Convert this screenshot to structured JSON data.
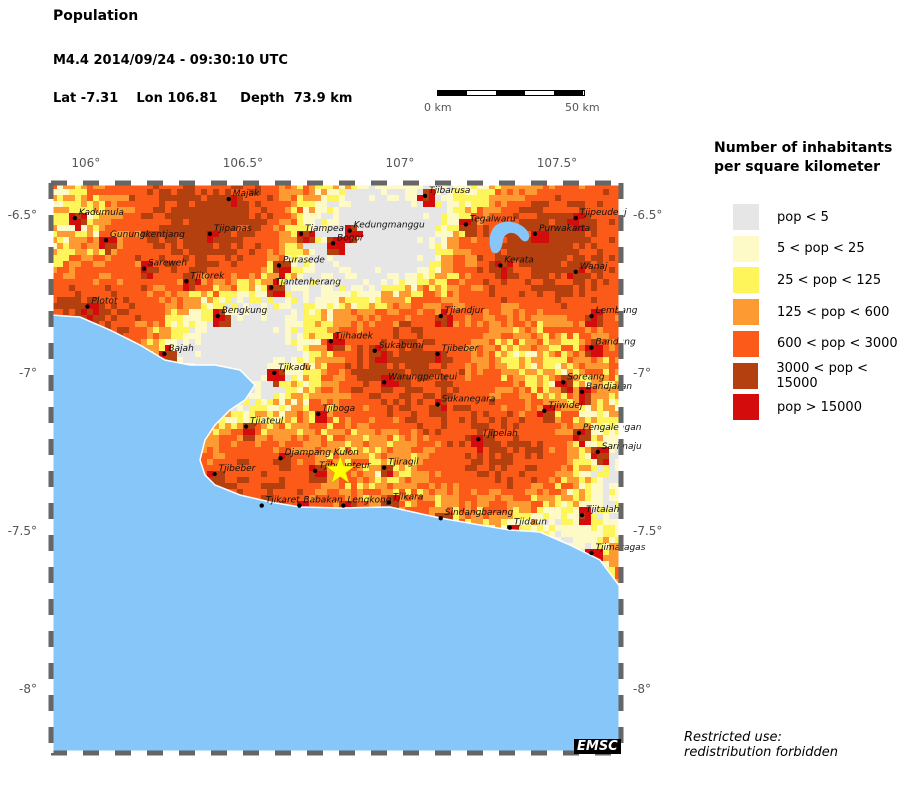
{
  "header": {
    "title": "Population",
    "event": "M4.4  2014/09/24 - 09:30:10 UTC",
    "location": "Lat -7.31    Lon 106.81     Depth  73.9 km"
  },
  "scale_bar": {
    "start_label": "0 km",
    "end_label": "50 km"
  },
  "map": {
    "lon_range": [
      105.889,
      107.704
    ],
    "lat_range": [
      -8.203,
      -6.399
    ],
    "lon_ticks": [
      {
        "v": 106,
        "label": "106°"
      },
      {
        "v": 106.5,
        "label": "106.5°"
      },
      {
        "v": 107,
        "label": "107°"
      },
      {
        "v": 107.5,
        "label": "107.5°"
      }
    ],
    "lat_ticks": [
      {
        "v": -6.5,
        "label": "-6.5°"
      },
      {
        "v": -7,
        "label": "-7°"
      },
      {
        "v": -7.5,
        "label": "-7.5°"
      },
      {
        "v": -8,
        "label": "-8°"
      }
    ],
    "sea_color": "#87c6f8",
    "epicenter": {
      "lon": 106.81,
      "lat": -7.31,
      "color": "#ffff00",
      "icon": "star-icon"
    },
    "cities": [
      {
        "name": "Kadumula",
        "lon": 105.965,
        "lat": -6.51
      },
      {
        "name": "Gunungkentjang",
        "lon": 106.064,
        "lat": -6.58
      },
      {
        "name": "Tjipanas",
        "lon": 106.395,
        "lat": -6.56
      },
      {
        "name": "Majak",
        "lon": 106.455,
        "lat": -6.45
      },
      {
        "name": "Tjampea",
        "lon": 106.685,
        "lat": -6.56
      },
      {
        "name": "Bogor",
        "lon": 106.787,
        "lat": -6.59
      },
      {
        "name": "Kedungmanggu",
        "lon": 106.84,
        "lat": -6.55
      },
      {
        "name": "Tjibarusa",
        "lon": 107.08,
        "lat": -6.44
      },
      {
        "name": "Tegalwaru",
        "lon": 107.21,
        "lat": -6.53
      },
      {
        "name": "Purwakarta",
        "lon": 107.43,
        "lat": -6.56
      },
      {
        "name": "Tjipeudeuj",
        "lon": 107.56,
        "lat": -6.51
      },
      {
        "name": "Sareweh",
        "lon": 106.185,
        "lat": -6.67
      },
      {
        "name": "Tjitorek",
        "lon": 106.32,
        "lat": -6.71
      },
      {
        "name": "Purasede",
        "lon": 106.615,
        "lat": -6.66
      },
      {
        "name": "Tjantenherang",
        "lon": 106.59,
        "lat": -6.73
      },
      {
        "name": "Kerata",
        "lon": 107.32,
        "lat": -6.66
      },
      {
        "name": "Wanaj",
        "lon": 107.56,
        "lat": -6.68
      },
      {
        "name": "Plotot",
        "lon": 106.005,
        "lat": -6.79
      },
      {
        "name": "Bengkung",
        "lon": 106.42,
        "lat": -6.82
      },
      {
        "name": "Tjiandjur",
        "lon": 107.13,
        "lat": -6.82
      },
      {
        "name": "Lembang",
        "lon": 107.61,
        "lat": -6.82
      },
      {
        "name": "Tjihadek",
        "lon": 106.78,
        "lat": -6.9
      },
      {
        "name": "Bajah",
        "lon": 106.25,
        "lat": -6.94
      },
      {
        "name": "Sukabumi",
        "lon": 106.92,
        "lat": -6.93
      },
      {
        "name": "Tjibeber",
        "lon": 107.12,
        "lat": -6.94
      },
      {
        "name": "Bandung",
        "lon": 107.61,
        "lat": -6.92
      },
      {
        "name": "Tjikadu",
        "lon": 106.6,
        "lat": -7.0
      },
      {
        "name": "Warungpeuteui",
        "lon": 106.95,
        "lat": -7.03
      },
      {
        "name": "Soreang",
        "lon": 107.52,
        "lat": -7.03
      },
      {
        "name": "Bandjaran",
        "lon": 107.58,
        "lat": -7.06
      },
      {
        "name": "Sukanegara",
        "lon": 107.12,
        "lat": -7.1
      },
      {
        "name": "Tjiwidej",
        "lon": 107.46,
        "lat": -7.12
      },
      {
        "name": "Tjiboga",
        "lon": 106.74,
        "lat": -7.13
      },
      {
        "name": "Tjiateul",
        "lon": 106.51,
        "lat": -7.17
      },
      {
        "name": "Pengalengan",
        "lon": 107.57,
        "lat": -7.19
      },
      {
        "name": "Tjipelah",
        "lon": 107.25,
        "lat": -7.21
      },
      {
        "name": "Sarimaju",
        "lon": 107.63,
        "lat": -7.25
      },
      {
        "name": "Djampang Kulon",
        "lon": 106.62,
        "lat": -7.27
      },
      {
        "name": "Tjibeber",
        "lon": 106.41,
        "lat": -7.32
      },
      {
        "name": "Tjibeunteur",
        "lon": 106.73,
        "lat": -7.31
      },
      {
        "name": "Tjiragil",
        "lon": 106.95,
        "lat": -7.3
      },
      {
        "name": "Tjikaret",
        "lon": 106.56,
        "lat": -7.42
      },
      {
        "name": "Babakan",
        "lon": 106.68,
        "lat": -7.42
      },
      {
        "name": "Lengkong",
        "lon": 106.82,
        "lat": -7.42
      },
      {
        "name": "Tjikara",
        "lon": 106.965,
        "lat": -7.41
      },
      {
        "name": "Sindangbarang",
        "lon": 107.13,
        "lat": -7.46
      },
      {
        "name": "Tjidaun",
        "lon": 107.35,
        "lat": -7.49
      },
      {
        "name": "Tjitalah",
        "lon": 107.58,
        "lat": -7.45
      },
      {
        "name": "Tjimaragas",
        "lon": 107.61,
        "lat": -7.57
      }
    ]
  },
  "legend": {
    "title_line1": "Number of inhabitants",
    "title_line2": "per square kilometer",
    "items": [
      {
        "label": "pop < 5",
        "color": "#e6e6e6"
      },
      {
        "label": "5 < pop < 25",
        "color": "#fdfac8"
      },
      {
        "label": "25 < pop < 125",
        "color": "#fdf55a"
      },
      {
        "label": "125 < pop < 600",
        "color": "#fd9a32"
      },
      {
        "label": "600 < pop < 3000",
        "color": "#fb5a18"
      },
      {
        "label": "3000 < pop < 15000",
        "color": "#b5400f"
      },
      {
        "label": "pop > 15000",
        "color": "#d40c0c"
      }
    ]
  },
  "footer": {
    "restricted_line1": "Restricted use:",
    "restricted_line2": "redistribution forbidden",
    "logo": "EMSC"
  }
}
